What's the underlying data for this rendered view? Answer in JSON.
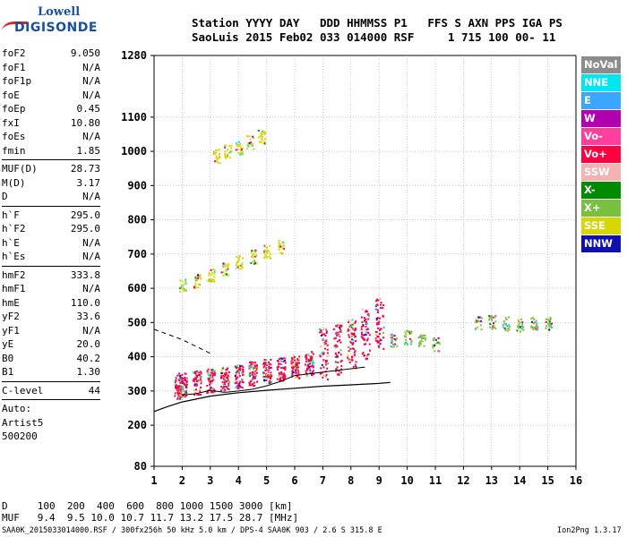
{
  "logo": {
    "line1": "Lowell",
    "line2": "DIGISONDE"
  },
  "header": {
    "labels": "Station YYYY DAY   DDD HHMMSS P1   FFS S AXN PPS IGA PS",
    "values": "SaoLuis 2015 Feb02 033 014000 RSF     1 715 100 00- 11"
  },
  "params": {
    "group1": [
      {
        "k": "foF2",
        "v": "9.050"
      },
      {
        "k": "foF1",
        "v": "N/A"
      },
      {
        "k": "foF1p",
        "v": "N/A"
      },
      {
        "k": "foE",
        "v": "N/A"
      },
      {
        "k": "foEp",
        "v": "0.45"
      },
      {
        "k": "fxI",
        "v": "10.80"
      },
      {
        "k": "foEs",
        "v": "N/A"
      },
      {
        "k": "fmin",
        "v": "1.85"
      }
    ],
    "group2": [
      {
        "k": "MUF(D)",
        "v": "28.73"
      },
      {
        "k": "M(D)",
        "v": "3.17"
      },
      {
        "k": "D",
        "v": "N/A"
      }
    ],
    "group3": [
      {
        "k": "h`F",
        "v": "295.0"
      },
      {
        "k": "h`F2",
        "v": "295.0"
      },
      {
        "k": "h`E",
        "v": "N/A"
      },
      {
        "k": "h`Es",
        "v": "N/A"
      }
    ],
    "group4": [
      {
        "k": "hmF2",
        "v": "333.8"
      },
      {
        "k": "hmF1",
        "v": "N/A"
      },
      {
        "k": "hmE",
        "v": "110.0"
      },
      {
        "k": "yF2",
        "v": "33.6"
      },
      {
        "k": "yF1",
        "v": "N/A"
      },
      {
        "k": "yE",
        "v": "20.0"
      },
      {
        "k": "B0",
        "v": "40.2"
      },
      {
        "k": "B1",
        "v": "1.30"
      }
    ],
    "group5": [
      {
        "k": "C-level",
        "v": "44"
      }
    ],
    "auto": [
      "Auto:",
      "Artist5",
      "500200"
    ]
  },
  "legend": [
    {
      "label": "NoVal",
      "color": "#8c8c8c"
    },
    {
      "label": "NNE",
      "color": "#00e6f0"
    },
    {
      "label": "E",
      "color": "#3aa6ff"
    },
    {
      "label": "W",
      "color": "#b000b0"
    },
    {
      "label": "Vo-",
      "color": "#ff3fa0"
    },
    {
      "label": "Vo+",
      "color": "#ff0040"
    },
    {
      "label": "SSW",
      "color": "#f4b2b2"
    },
    {
      "label": "X-",
      "color": "#008a00"
    },
    {
      "label": "X+",
      "color": "#7ac040"
    },
    {
      "label": "SSE",
      "color": "#d6d600"
    },
    {
      "label": "NNW",
      "color": "#1010b0"
    }
  ],
  "footer": {
    "line1": "D     100  200  400  600  800 1000 1500 3000 [km]",
    "line2": "MUF   9.4  9.5 10.0 10.7 11.7 13.2 17.5 28.7 [MHz]",
    "left": "SAA0K_2015033014000.RSF / 300fx256h 50 kHz 5.0 km / DPS-4 SAA0K 903 / 2.6 S 315.8 E",
    "right": "Ion2Png 1.3.17"
  },
  "chart_data": {
    "type": "scatter",
    "title": "",
    "xlabel": "",
    "ylabel": "",
    "xlim": [
      1,
      16
    ],
    "ylim": [
      80,
      1280
    ],
    "xticks": [
      1,
      2,
      3,
      4,
      5,
      6,
      7,
      8,
      9,
      10,
      11,
      12,
      13,
      14,
      15,
      16
    ],
    "yticks": [
      80,
      200,
      300,
      400,
      500,
      600,
      700,
      800,
      900,
      1000,
      1100,
      1280
    ],
    "series": [
      {
        "name": "F-trace O-mode virtual height",
        "color": "#ff0040",
        "x": [
          1.85,
          2.0,
          2.5,
          3.0,
          3.5,
          4.0,
          4.5,
          5.0,
          5.5,
          6.0,
          6.5,
          7.0,
          7.5,
          8.0,
          8.5,
          9.0
        ],
        "y": [
          300,
          305,
          312,
          318,
          322,
          330,
          338,
          345,
          352,
          360,
          368,
          380,
          392,
          410,
          440,
          470
        ]
      },
      {
        "name": "Multi-hop echoes",
        "color": "#d6d600",
        "x": [
          2.0,
          2.5,
          3.0,
          3.5,
          4.0,
          4.5,
          5.0,
          5.5
        ],
        "y": [
          600,
          615,
          630,
          650,
          670,
          685,
          700,
          715
        ]
      },
      {
        "name": "Spread-F",
        "color": "#7ac040",
        "x": [
          9.5,
          10.0,
          10.5,
          11.0,
          12.5,
          13.0,
          13.5,
          14.0,
          14.5,
          15.0
        ],
        "y": [
          440,
          450,
          445,
          430,
          490,
          495,
          490,
          485,
          490,
          490
        ]
      },
      {
        "name": "High echoes",
        "color": "#d6d600",
        "x": [
          3.2,
          3.6,
          4.0,
          4.4,
          4.8
        ],
        "y": [
          980,
          995,
          1005,
          1020,
          1035
        ]
      }
    ],
    "profile_curve": {
      "x": [
        1.0,
        1.5,
        2.0,
        3.0,
        4.0,
        5.0,
        6.0,
        7.0,
        8.0,
        9.0,
        9.4
      ],
      "y": [
        240,
        255,
        268,
        285,
        295,
        302,
        308,
        314,
        318,
        322,
        325
      ]
    },
    "trace_curve": {
      "x": [
        2.0,
        2.5,
        3.0,
        3.5,
        4.0,
        4.5,
        5.0,
        5.5,
        6.0,
        6.5,
        7.0,
        7.5,
        8.0,
        8.5
      ],
      "y": [
        288,
        292,
        302,
        296,
        300,
        305,
        315,
        328,
        345,
        350,
        355,
        360,
        365,
        370
      ]
    },
    "dashed_curve": {
      "x": [
        1.0,
        1.5,
        2.0,
        2.5,
        3.0
      ],
      "y": [
        480,
        465,
        450,
        430,
        410
      ]
    }
  }
}
